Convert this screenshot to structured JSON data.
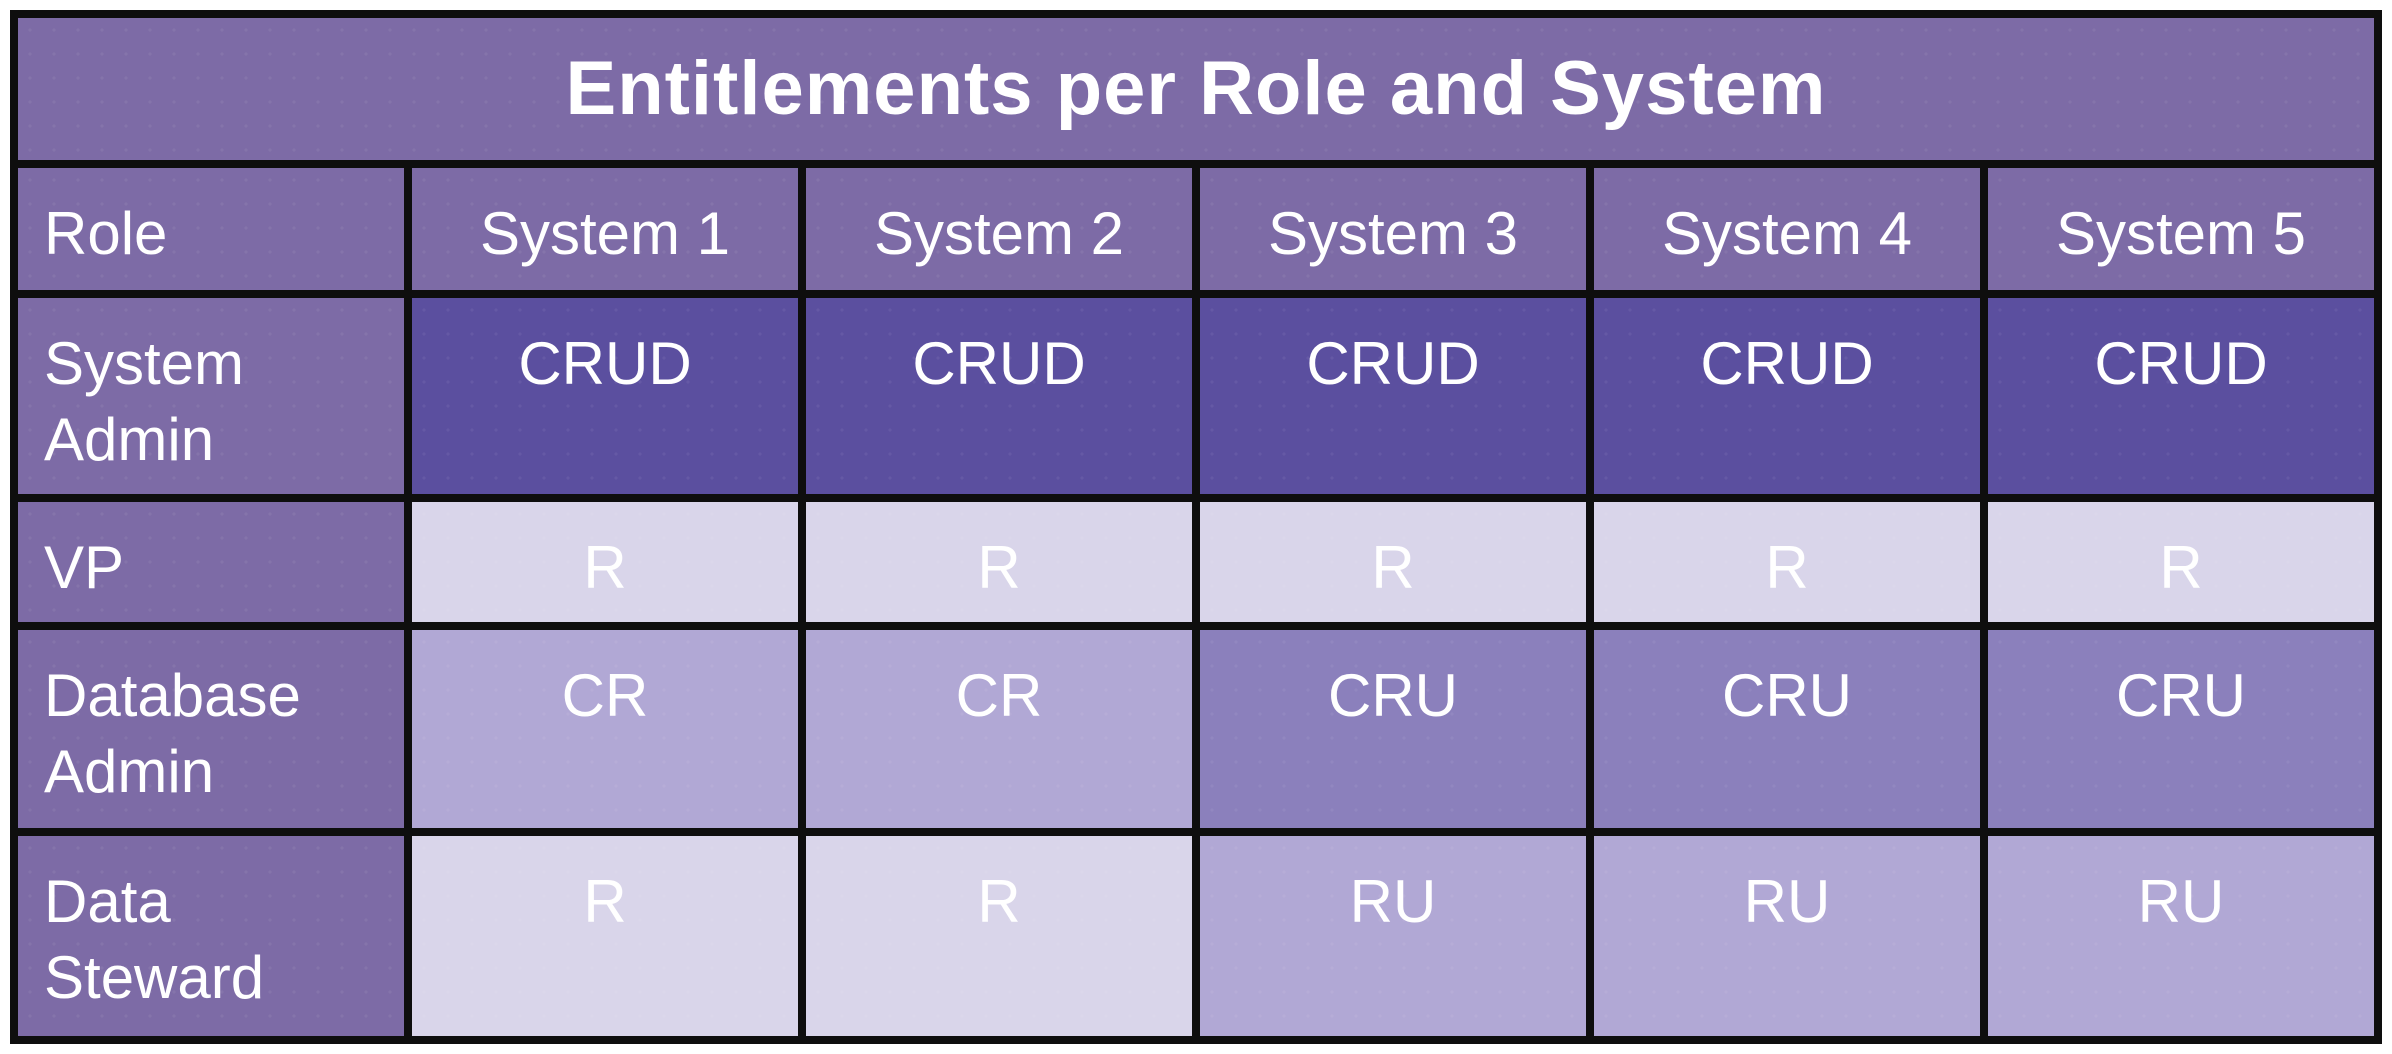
{
  "title": "Entitlements per Role and System",
  "colors": {
    "pageBackground": "#ffffff",
    "border": "#0e0e0e",
    "headerPurple": "#7d6ba6",
    "level4": "#5b4f9f",
    "level3": "#8b80bc",
    "level2": "#b1a8d5",
    "level1": "#d9d5ea",
    "text": "#ffffff"
  },
  "matrix": {
    "columns": [
      "Role",
      "System 1",
      "System 2",
      "System 3",
      "System 4",
      "System 5"
    ],
    "rows": [
      {
        "role": "System Admin",
        "cells": [
          {
            "value": "CRUD",
            "level": 4
          },
          {
            "value": "CRUD",
            "level": 4
          },
          {
            "value": "CRUD",
            "level": 4
          },
          {
            "value": "CRUD",
            "level": 4
          },
          {
            "value": "CRUD",
            "level": 4
          }
        ]
      },
      {
        "role": "VP",
        "cells": [
          {
            "value": "R",
            "level": 1
          },
          {
            "value": "R",
            "level": 1
          },
          {
            "value": "R",
            "level": 1
          },
          {
            "value": "R",
            "level": 1
          },
          {
            "value": "R",
            "level": 1
          }
        ]
      },
      {
        "role": "Database Admin",
        "cells": [
          {
            "value": "CR",
            "level": 2
          },
          {
            "value": "CR",
            "level": 2
          },
          {
            "value": "CRU",
            "level": 3
          },
          {
            "value": "CRU",
            "level": 3
          },
          {
            "value": "CRU",
            "level": 3
          }
        ]
      },
      {
        "role": "Data Steward",
        "cells": [
          {
            "value": "R",
            "level": 1
          },
          {
            "value": "R",
            "level": 1
          },
          {
            "value": "RU",
            "level": 2
          },
          {
            "value": "RU",
            "level": 2
          },
          {
            "value": "RU",
            "level": 2
          }
        ]
      }
    ]
  },
  "chart_data": {
    "type": "table",
    "title": "Entitlements per Role and System",
    "columns": [
      "Role",
      "System 1",
      "System 2",
      "System 3",
      "System 4",
      "System 5"
    ],
    "rows": [
      [
        "System Admin",
        "CRUD",
        "CRUD",
        "CRUD",
        "CRUD",
        "CRUD"
      ],
      [
        "VP",
        "R",
        "R",
        "R",
        "R",
        "R"
      ],
      [
        "Database Admin",
        "CR",
        "CR",
        "CRU",
        "CRU",
        "CRU"
      ],
      [
        "Data Steward",
        "R",
        "R",
        "RU",
        "RU",
        "RU"
      ]
    ],
    "layout_hints": {
      "shading": "cell background darkens with number of entitlement letters: 4=darkest, 1=lightest",
      "grid": "thick black borders, title row spans all columns"
    }
  }
}
